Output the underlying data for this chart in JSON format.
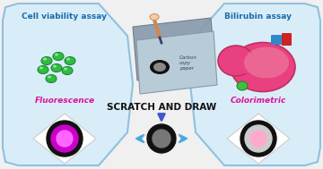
{
  "bg_color": "#f0f0f0",
  "left_panel": {
    "bg_color": "#d8edf8",
    "border_color": "#90c0e0",
    "title": "Cell viability assay",
    "title_color": "#1a6aaa",
    "label": "Fluorescence",
    "label_color": "#dd1199",
    "cells_color": "#33bb44",
    "cells_dark": "#1a8830",
    "spot_outer": "#111111",
    "spot_mid": "#cc00cc",
    "spot_inner": "#ff66ff"
  },
  "right_panel": {
    "bg_color": "#d8edf8",
    "border_color": "#90c0e0",
    "title": "Bilirubin assay",
    "title_color": "#1a6aaa",
    "label": "Colorimetric",
    "label_color": "#dd1199",
    "liver_main": "#e84080",
    "liver_light": "#f080a0",
    "liver_dark": "#c03060",
    "gallbladder": "#44bb44",
    "duct_blue": "#3388cc",
    "duct_red": "#cc2222",
    "spot_outer": "#111111",
    "spot_mid": "#cccccc",
    "spot_inner": "#ffaacc"
  },
  "center": {
    "paper_top_color": "#a0b8c8",
    "paper_bot_color": "#b8ccd8",
    "paper_shadow": "#708090",
    "scratch_text": "Carbon\ncopy\npaper",
    "scratch_text_color": "#334455",
    "main_label": "SCRATCH AND DRAW",
    "main_label_color": "#111111",
    "arrow_lr_color": "#44aadd",
    "arrow_down_color": "#4455cc",
    "ring_outer": "#111111",
    "ring_inner": "#777777"
  }
}
